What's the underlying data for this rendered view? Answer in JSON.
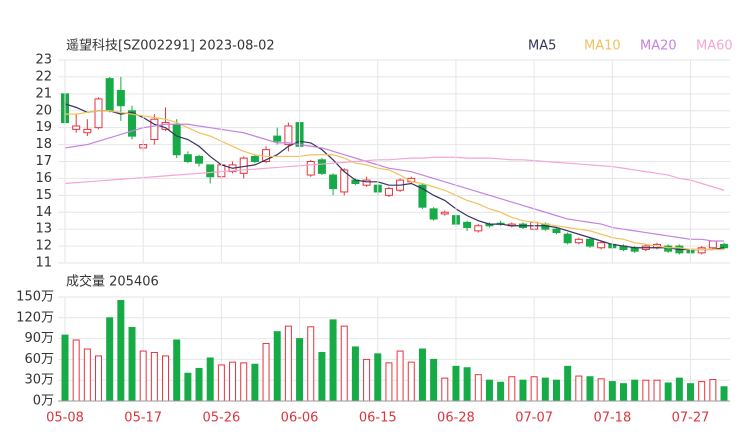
{
  "chart_data": [
    {
      "type": "candlestick",
      "title": "遥望科技[SZ002291] 2023-08-02",
      "up_color": "#e8333d",
      "down_color": "#17ab47",
      "open": [
        21.0,
        18.9,
        18.7,
        19.0,
        21.9,
        21.2,
        20.0,
        17.8,
        18.3,
        18.9,
        19.2,
        17.4,
        17.3,
        16.8,
        16.1,
        16.4,
        16.3,
        17.3,
        17.0,
        18.5,
        18.0,
        19.3,
        16.2,
        17.1,
        16.2,
        15.2,
        15.9,
        15.6,
        15.6,
        15.0,
        15.3,
        15.8,
        15.6,
        14.2,
        13.9,
        13.8,
        13.4,
        12.9,
        13.3,
        13.35,
        13.2,
        13.3,
        13.0,
        13.3,
        13.0,
        12.7,
        12.2,
        12.4,
        11.9,
        12.1,
        12.0,
        11.9,
        11.8,
        11.9,
        12.0,
        12.0,
        11.8,
        11.6,
        11.9,
        12.1
      ],
      "high": [
        21.3,
        19.8,
        19.5,
        20.8,
        22.0,
        22.0,
        20.3,
        18.3,
        19.8,
        20.2,
        19.5,
        17.6,
        17.4,
        16.8,
        16.9,
        17.0,
        17.3,
        17.4,
        17.9,
        19.0,
        19.3,
        19.4,
        17.1,
        17.2,
        16.3,
        16.6,
        16.0,
        16.1,
        15.7,
        15.5,
        16.0,
        16.1,
        15.7,
        14.3,
        14.1,
        13.9,
        13.5,
        13.3,
        13.4,
        13.5,
        13.4,
        13.4,
        13.5,
        13.4,
        13.1,
        12.8,
        12.5,
        12.5,
        12.3,
        12.2,
        12.1,
        12.0,
        12.1,
        12.2,
        12.1,
        12.1,
        11.9,
        12.0,
        12.3,
        12.2
      ],
      "low": [
        19.2,
        18.7,
        18.5,
        18.9,
        19.9,
        19.4,
        18.3,
        17.6,
        18.0,
        18.8,
        17.2,
        16.9,
        16.7,
        15.7,
        16.0,
        16.3,
        16.0,
        16.9,
        16.9,
        18.0,
        17.6,
        17.8,
        16.1,
        16.2,
        15.0,
        15.0,
        15.6,
        15.5,
        15.0,
        14.9,
        15.2,
        15.7,
        14.2,
        13.5,
        13.8,
        13.1,
        12.9,
        12.8,
        13.1,
        13.2,
        13.1,
        13.0,
        12.9,
        12.9,
        12.7,
        12.1,
        12.1,
        11.9,
        11.8,
        11.8,
        11.7,
        11.6,
        11.7,
        11.8,
        11.6,
        11.5,
        11.5,
        11.5,
        11.8,
        11.8
      ],
      "close": [
        19.3,
        19.1,
        18.9,
        20.7,
        20.0,
        20.3,
        18.5,
        18.0,
        19.5,
        19.3,
        17.4,
        17.0,
        16.9,
        16.1,
        16.8,
        16.8,
        17.2,
        17.0,
        17.7,
        18.2,
        19.1,
        17.9,
        17.0,
        16.3,
        15.4,
        16.5,
        15.7,
        15.9,
        15.2,
        15.4,
        15.9,
        16.0,
        14.3,
        13.6,
        14.0,
        13.3,
        13.1,
        13.2,
        13.2,
        13.3,
        13.3,
        13.1,
        13.4,
        13.0,
        12.8,
        12.2,
        12.4,
        12.0,
        12.2,
        11.9,
        11.8,
        11.7,
        12.0,
        12.1,
        11.7,
        11.6,
        11.6,
        11.9,
        12.3,
        11.9
      ],
      "series": [
        {
          "name": "MA5",
          "color": "#333360",
          "values": [
            20.4,
            20.2,
            19.9,
            20.0,
            20.0,
            19.8,
            19.9,
            19.6,
            19.2,
            19.0,
            18.5,
            18.3,
            17.9,
            17.3,
            16.8,
            16.6,
            16.7,
            16.8,
            17.1,
            17.4,
            17.9,
            18.2,
            18.1,
            17.7,
            17.1,
            16.4,
            15.9,
            15.8,
            15.8,
            15.6,
            15.6,
            15.7,
            15.4,
            15.0,
            14.7,
            14.2,
            13.8,
            13.5,
            13.3,
            13.3,
            13.2,
            13.2,
            13.2,
            13.2,
            13.1,
            12.9,
            12.7,
            12.5,
            12.3,
            12.1,
            12.0,
            11.9,
            11.9,
            11.9,
            11.9,
            11.8,
            11.8,
            11.8,
            11.8,
            11.9
          ]
        },
        {
          "name": "MA10",
          "color": "#f2c25c",
          "values": [
            19.8,
            19.8,
            19.9,
            20.0,
            20.0,
            19.9,
            19.8,
            19.7,
            19.6,
            19.5,
            19.3,
            19.0,
            18.7,
            18.5,
            18.2,
            17.9,
            17.6,
            17.4,
            17.3,
            17.3,
            17.3,
            17.3,
            17.4,
            17.4,
            17.4,
            17.2,
            16.9,
            16.8,
            16.6,
            16.5,
            16.2,
            15.8,
            15.7,
            15.5,
            15.3,
            15.0,
            14.7,
            14.5,
            14.2,
            14.0,
            13.7,
            13.5,
            13.4,
            13.3,
            13.2,
            13.1,
            13.0,
            12.9,
            12.7,
            12.5,
            12.4,
            12.2,
            12.1,
            12.0,
            11.9,
            11.9,
            11.8,
            11.8,
            11.8,
            11.8
          ]
        },
        {
          "name": "MA20",
          "color": "#c583e0",
          "values": [
            17.8,
            17.9,
            18.0,
            18.2,
            18.4,
            18.6,
            18.8,
            19.0,
            19.1,
            19.2,
            19.2,
            19.2,
            19.1,
            19.0,
            18.9,
            18.8,
            18.7,
            18.5,
            18.3,
            18.1,
            18.1,
            18.0,
            17.9,
            17.8,
            17.6,
            17.4,
            17.2,
            17.0,
            16.8,
            16.6,
            16.5,
            16.4,
            16.2,
            16.0,
            15.8,
            15.6,
            15.4,
            15.2,
            15.0,
            14.8,
            14.6,
            14.4,
            14.2,
            14.0,
            13.8,
            13.6,
            13.5,
            13.4,
            13.3,
            13.1,
            13.0,
            12.9,
            12.8,
            12.7,
            12.6,
            12.5,
            12.4,
            12.4,
            12.3,
            12.3
          ]
        },
        {
          "name": "MA60",
          "color": "#f4a6d4",
          "values": [
            15.7,
            15.75,
            15.8,
            15.85,
            15.9,
            15.95,
            16.0,
            16.05,
            16.1,
            16.15,
            16.2,
            16.25,
            16.3,
            16.35,
            16.4,
            16.45,
            16.5,
            16.55,
            16.6,
            16.65,
            16.7,
            16.75,
            16.8,
            16.85,
            16.9,
            16.95,
            17.0,
            17.05,
            17.1,
            17.1,
            17.15,
            17.2,
            17.2,
            17.25,
            17.25,
            17.25,
            17.2,
            17.2,
            17.2,
            17.15,
            17.1,
            17.1,
            17.05,
            17.0,
            16.95,
            16.9,
            16.85,
            16.8,
            16.75,
            16.7,
            16.6,
            16.5,
            16.4,
            16.3,
            16.2,
            16.0,
            15.9,
            15.7,
            15.5,
            15.3
          ]
        }
      ],
      "ylim": [
        11,
        23
      ],
      "yticks": [
        11,
        12,
        13,
        14,
        15,
        16,
        17,
        18,
        19,
        20,
        21,
        22,
        23
      ],
      "grid": true
    },
    {
      "type": "bar",
      "title": "成交量 205406",
      "categories": [
        "05-08",
        null,
        null,
        null,
        null,
        null,
        null,
        "05-17",
        null,
        null,
        null,
        null,
        null,
        null,
        "05-26",
        null,
        null,
        null,
        null,
        null,
        null,
        "06-06",
        null,
        null,
        null,
        null,
        null,
        null,
        "06-15",
        null,
        null,
        null,
        null,
        null,
        null,
        "06-28",
        null,
        null,
        null,
        null,
        null,
        null,
        "07-07",
        null,
        null,
        null,
        null,
        null,
        null,
        "07-18",
        null,
        null,
        null,
        null,
        null,
        null,
        "07-27",
        null,
        null,
        null
      ],
      "values": [
        95,
        88,
        75,
        65,
        120,
        145,
        106,
        72,
        70,
        65,
        88,
        40,
        47,
        62,
        52,
        56,
        55,
        53,
        83,
        100,
        108,
        90,
        107,
        70,
        117,
        108,
        78,
        60,
        68,
        55,
        72,
        56,
        75,
        60,
        33,
        50,
        48,
        38,
        30,
        27,
        35,
        30,
        35,
        33,
        30,
        50,
        36,
        35,
        32,
        28,
        25,
        30,
        30,
        30,
        26,
        33,
        25,
        28,
        31,
        20.54
      ],
      "ylim": [
        0,
        150
      ],
      "yticks": [
        {
          "value": 0,
          "label": "0万"
        },
        {
          "value": 30,
          "label": "30万"
        },
        {
          "value": 60,
          "label": "60万"
        },
        {
          "value": 90,
          "label": "90万"
        },
        {
          "value": 120,
          "label": "120万"
        },
        {
          "value": 150,
          "label": "150万"
        }
      ],
      "grid": true
    }
  ]
}
